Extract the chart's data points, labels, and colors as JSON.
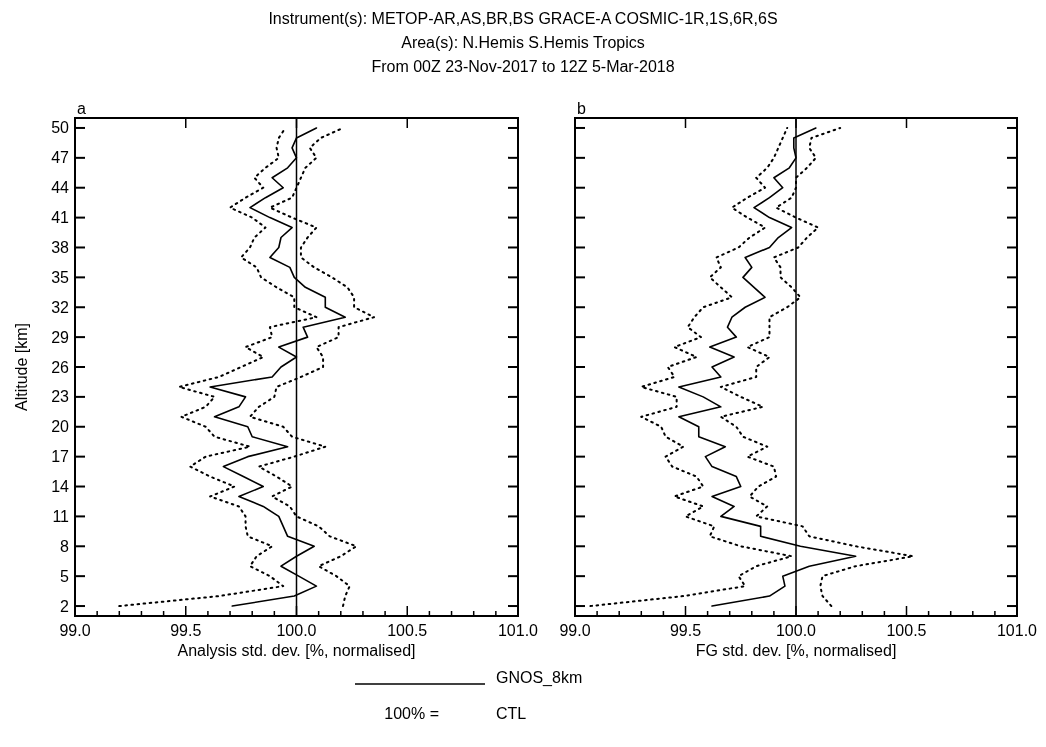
{
  "chart_data": [
    {
      "type": "line",
      "title": "Instrument(s): METOP-AR,AS,BR,BS GRACE-A COSMIC-1R,1S,6R,6S",
      "subtitle": "Area(s): N.Hemis S.Hemis Tropics\nFrom 00Z 23-Nov-2017 to 12Z  5-Mar-2018",
      "xlabel": "Analysis std. dev. [%, normalised]",
      "ylabel": "Altitude [km]",
      "annotations": [
        "a",
        "100% =",
        "CTL"
      ],
      "legend": "bottom",
      "xlim": [
        99,
        101
      ],
      "ylim": [
        1,
        51
      ],
      "xticks": [
        {
          "value": 99,
          "label": "99.0"
        },
        {
          "value": 99.1,
          "label": null
        },
        {
          "value": 99.2,
          "label": null
        },
        {
          "value": 99.3,
          "label": null
        },
        {
          "value": 99.4,
          "label": null
        },
        {
          "value": 99.5,
          "label": "99.5"
        },
        {
          "value": 99.6,
          "label": null
        },
        {
          "value": 99.7,
          "label": null
        },
        {
          "value": 99.8,
          "label": null
        },
        {
          "value": 99.9,
          "label": null
        },
        {
          "value": 100,
          "label": "100.0"
        },
        {
          "value": 100.1,
          "label": null
        },
        {
          "value": 100.2,
          "label": null
        },
        {
          "value": 100.3,
          "label": null
        },
        {
          "value": 100.4,
          "label": null
        },
        {
          "value": 100.5,
          "label": "100.5"
        },
        {
          "value": 100.6,
          "label": null
        },
        {
          "value": 100.7,
          "label": null
        },
        {
          "value": 100.8,
          "label": null
        },
        {
          "value": 100.9,
          "label": null
        },
        {
          "value": 101,
          "label": "101.0"
        }
      ],
      "yticks": [
        2,
        5,
        8,
        11,
        14,
        17,
        20,
        23,
        26,
        29,
        32,
        35,
        38,
        41,
        44,
        47,
        50
      ],
      "ref_lines": [
        {
          "axis": "x",
          "value": 100,
          "color": "#000000"
        }
      ],
      "series": [
        {
          "name": "GNOS_8km",
          "color": "#000000",
          "line_style": "solid",
          "x": [
            99.71,
            99.99,
            100.09,
            100.01,
            99.93,
            100.0,
            100.08,
            99.96,
            99.94,
            99.92,
            99.85,
            99.74,
            99.85,
            99.76,
            99.67,
            99.78,
            99.96,
            99.8,
            99.78,
            99.63,
            99.74,
            99.77,
            99.61,
            99.89,
            99.93,
            100.0,
            99.92,
            100.05,
            100.03,
            100.22,
            100.13,
            100.13,
            100.04,
            99.99,
            99.97,
            99.88,
            99.92,
            99.93,
            99.98,
            99.88,
            99.79,
            99.86,
            99.94,
            99.89,
            99.96,
            100.0,
            99.98,
            100.0,
            100.09
          ],
          "values": [
            2,
            3,
            4,
            5,
            6,
            7,
            8,
            9,
            10,
            11,
            12,
            13,
            14,
            15,
            16,
            17,
            18,
            19,
            20,
            21,
            22,
            23,
            24,
            25,
            26,
            27,
            28,
            29,
            30,
            31,
            32,
            33,
            34,
            35,
            36,
            37,
            38,
            39,
            40,
            41,
            42,
            43,
            44,
            45,
            46,
            47,
            48,
            49,
            50
          ]
        },
        {
          "color": "#000000",
          "line_style": "dotted",
          "x": [
            99.2,
            99.65,
            99.94,
            99.88,
            99.79,
            99.82,
            99.89,
            99.78,
            99.77,
            99.77,
            99.74,
            99.61,
            99.72,
            99.61,
            99.52,
            99.59,
            99.79,
            99.63,
            99.59,
            99.48,
            99.59,
            99.63,
            99.47,
            99.65,
            99.75,
            99.85,
            99.77,
            99.89,
            99.88,
            100.09,
            99.99,
            99.99,
            99.91,
            99.84,
            99.82,
            99.75,
            99.79,
            99.81,
            99.86,
            99.8,
            99.7,
            99.77,
            99.85,
            99.81,
            99.86,
            99.92,
            99.91,
            99.92,
            99.95
          ],
          "values": [
            2,
            3,
            4,
            5,
            6,
            7,
            8,
            9,
            10,
            11,
            12,
            13,
            14,
            15,
            16,
            17,
            18,
            19,
            20,
            21,
            22,
            23,
            24,
            25,
            26,
            27,
            28,
            29,
            30,
            31,
            32,
            33,
            34,
            35,
            36,
            37,
            38,
            39,
            40,
            41,
            42,
            43,
            44,
            45,
            46,
            47,
            48,
            49,
            50
          ]
        },
        {
          "color": "#000000",
          "line_style": "dotted",
          "x": [
            100.21,
            100.22,
            100.24,
            100.18,
            100.1,
            100.2,
            100.27,
            100.15,
            100.1,
            100.0,
            99.97,
            99.89,
            99.98,
            99.91,
            99.83,
            99.99,
            100.13,
            99.98,
            99.94,
            99.79,
            99.83,
            99.9,
            99.91,
            100.02,
            100.12,
            100.12,
            100.09,
            100.19,
            100.19,
            100.35,
            100.26,
            100.26,
            100.23,
            100.16,
            100.08,
            100.02,
            100.02,
            100.05,
            100.09,
            99.98,
            99.88,
            99.98,
            100.0,
            100.02,
            100.04,
            100.09,
            100.06,
            100.11,
            100.21
          ],
          "values": [
            2,
            3,
            4,
            5,
            6,
            7,
            8,
            9,
            10,
            11,
            12,
            13,
            14,
            15,
            16,
            17,
            18,
            19,
            20,
            21,
            22,
            23,
            24,
            25,
            26,
            27,
            28,
            29,
            30,
            31,
            32,
            33,
            34,
            35,
            36,
            37,
            38,
            39,
            40,
            41,
            42,
            43,
            44,
            45,
            46,
            47,
            48,
            49,
            50
          ]
        }
      ]
    },
    {
      "type": "line",
      "xlabel": "FG std. dev. [%, normalised]",
      "annotations": [
        "b"
      ],
      "tick_labels": "x",
      "xlim": [
        99,
        101
      ],
      "ylim": [
        1,
        51
      ],
      "xticks": [
        {
          "value": 99,
          "label": "99.0"
        },
        {
          "value": 99.1,
          "label": null
        },
        {
          "value": 99.2,
          "label": null
        },
        {
          "value": 99.3,
          "label": null
        },
        {
          "value": 99.4,
          "label": null
        },
        {
          "value": 99.5,
          "label": "99.5"
        },
        {
          "value": 99.6,
          "label": null
        },
        {
          "value": 99.7,
          "label": null
        },
        {
          "value": 99.8,
          "label": null
        },
        {
          "value": 99.9,
          "label": null
        },
        {
          "value": 100,
          "label": "100.0"
        },
        {
          "value": 100.1,
          "label": null
        },
        {
          "value": 100.2,
          "label": null
        },
        {
          "value": 100.3,
          "label": null
        },
        {
          "value": 100.4,
          "label": null
        },
        {
          "value": 100.5,
          "label": "100.5"
        },
        {
          "value": 100.6,
          "label": null
        },
        {
          "value": 100.7,
          "label": null
        },
        {
          "value": 100.8,
          "label": null
        },
        {
          "value": 100.9,
          "label": null
        },
        {
          "value": 101,
          "label": "101.0"
        }
      ],
      "yticks": [
        2,
        5,
        8,
        11,
        14,
        17,
        20,
        23,
        26,
        29,
        32,
        35,
        38,
        41,
        44,
        47,
        50
      ],
      "ref_lines": [
        {
          "axis": "x",
          "value": 100,
          "color": "#000000"
        }
      ],
      "series": [
        {
          "color": "#000000",
          "line_style": "solid",
          "x": [
            99.62,
            99.88,
            99.95,
            99.94,
            100.06,
            100.27,
            100.02,
            99.84,
            99.84,
            99.66,
            99.72,
            99.62,
            99.75,
            99.73,
            99.62,
            99.59,
            99.68,
            99.56,
            99.56,
            99.47,
            99.66,
            99.58,
            99.47,
            99.66,
            99.62,
            99.72,
            99.61,
            99.73,
            99.69,
            99.71,
            99.77,
            99.86,
            99.81,
            99.76,
            99.8,
            99.77,
            99.88,
            99.92,
            99.98,
            99.88,
            99.81,
            99.88,
            99.94,
            99.9,
            99.97,
            100.0,
            99.99,
            99.99,
            100.09
          ],
          "values": [
            2,
            3,
            4,
            5,
            6,
            7,
            8,
            9,
            10,
            11,
            12,
            13,
            14,
            15,
            16,
            17,
            18,
            19,
            20,
            21,
            22,
            23,
            24,
            25,
            26,
            27,
            28,
            29,
            30,
            31,
            32,
            33,
            34,
            35,
            36,
            37,
            38,
            39,
            40,
            41,
            42,
            43,
            44,
            45,
            46,
            47,
            48,
            49,
            50
          ]
        },
        {
          "color": "#000000",
          "line_style": "dotted",
          "x": [
            99.07,
            99.49,
            99.77,
            99.74,
            99.82,
            99.98,
            99.75,
            99.61,
            99.63,
            99.5,
            99.58,
            99.45,
            99.58,
            99.55,
            99.44,
            99.41,
            99.49,
            99.41,
            99.39,
            99.3,
            99.46,
            99.46,
            99.3,
            99.45,
            99.42,
            99.55,
            99.45,
            99.57,
            99.51,
            99.54,
            99.58,
            99.71,
            99.66,
            99.61,
            99.66,
            99.64,
            99.74,
            99.79,
            99.86,
            99.78,
            99.71,
            99.78,
            99.86,
            99.82,
            99.87,
            99.9,
            99.92,
            99.94,
            99.96
          ],
          "values": [
            2,
            3,
            4,
            5,
            6,
            7,
            8,
            9,
            10,
            11,
            12,
            13,
            14,
            15,
            16,
            17,
            18,
            19,
            20,
            21,
            22,
            23,
            24,
            25,
            26,
            27,
            28,
            29,
            30,
            31,
            32,
            33,
            34,
            35,
            36,
            37,
            38,
            39,
            40,
            41,
            42,
            43,
            44,
            45,
            46,
            47,
            48,
            49,
            50
          ]
        },
        {
          "color": "#000000",
          "line_style": "dotted",
          "x": [
            100.16,
            100.12,
            100.11,
            100.12,
            100.27,
            100.53,
            100.27,
            100.06,
            100.03,
            99.82,
            99.87,
            99.79,
            99.83,
            99.91,
            99.9,
            99.78,
            99.87,
            99.76,
            99.73,
            99.66,
            99.85,
            99.75,
            99.66,
            99.82,
            99.82,
            99.88,
            99.78,
            99.88,
            99.88,
            99.88,
            99.96,
            100.02,
            99.98,
            99.93,
            99.93,
            99.9,
            100.01,
            100.05,
            100.1,
            100.0,
            99.91,
            99.98,
            100.0,
            100.0,
            100.05,
            100.09,
            100.06,
            100.07,
            100.2
          ],
          "values": [
            2,
            3,
            4,
            5,
            6,
            7,
            8,
            9,
            10,
            11,
            12,
            13,
            14,
            15,
            16,
            17,
            18,
            19,
            20,
            21,
            22,
            23,
            24,
            25,
            26,
            27,
            28,
            29,
            30,
            31,
            32,
            33,
            34,
            35,
            36,
            37,
            38,
            39,
            40,
            41,
            42,
            43,
            44,
            45,
            46,
            47,
            48,
            49,
            50
          ]
        }
      ]
    }
  ]
}
